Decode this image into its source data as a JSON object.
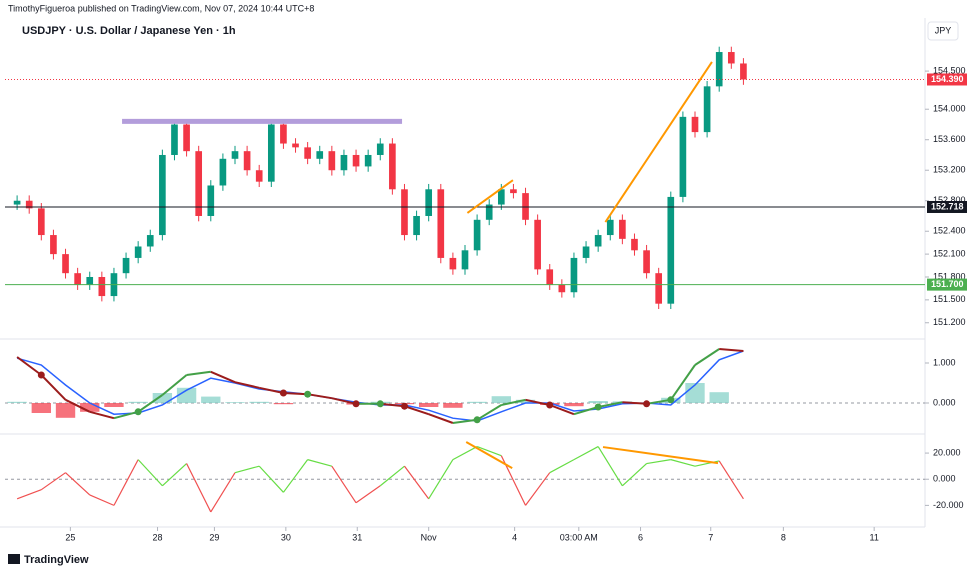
{
  "header": {
    "publisher": "TimothyFigueroa published on TradingView.com, Nov 07, 2024 10:44 UTC+8"
  },
  "currency": "JPY",
  "brand": "TradingView",
  "chart_data": [
    {
      "type": "candlestick",
      "title": "USDJPY · U.S. Dollar / Japanese Yen · 1h",
      "x": [
        0,
        1,
        2,
        3,
        4,
        5,
        6,
        7,
        8,
        9,
        10,
        11,
        12,
        13,
        14,
        15,
        16,
        17,
        18,
        19,
        20,
        21,
        22,
        23,
        24,
        25,
        26,
        27,
        28,
        29,
        30,
        31,
        32,
        33,
        34,
        35,
        36,
        37,
        38,
        39,
        40,
        41,
        42,
        43,
        44,
        45,
        46,
        47,
        48,
        49,
        50,
        51,
        52,
        53,
        54,
        55,
        56,
        57,
        58,
        59,
        60
      ],
      "open": [
        152.75,
        152.8,
        152.7,
        152.35,
        152.1,
        151.85,
        151.7,
        151.8,
        151.55,
        151.85,
        152.05,
        152.2,
        152.35,
        153.4,
        153.8,
        153.45,
        152.6,
        153.0,
        153.35,
        153.45,
        153.2,
        153.05,
        153.8,
        153.55,
        153.5,
        153.35,
        153.45,
        153.2,
        153.4,
        153.25,
        153.4,
        153.55,
        152.95,
        152.35,
        152.6,
        152.95,
        152.05,
        151.9,
        152.15,
        152.55,
        152.75,
        152.95,
        152.9,
        152.55,
        151.9,
        151.7,
        151.6,
        152.05,
        152.2,
        152.35,
        152.55,
        152.3,
        152.15,
        151.85,
        151.45,
        152.85,
        153.9,
        153.7,
        154.3,
        154.75,
        154.6
      ],
      "high": [
        152.87,
        152.87,
        152.77,
        152.42,
        152.17,
        151.92,
        151.87,
        151.87,
        151.92,
        152.12,
        152.27,
        152.42,
        153.47,
        153.87,
        153.87,
        153.52,
        153.07,
        153.42,
        153.52,
        153.52,
        153.27,
        153.87,
        153.87,
        153.62,
        153.57,
        153.52,
        153.52,
        153.47,
        153.47,
        153.47,
        153.62,
        153.62,
        153.02,
        152.67,
        153.02,
        153.02,
        152.12,
        152.22,
        152.62,
        152.82,
        153.02,
        153.02,
        152.97,
        152.62,
        151.97,
        151.77,
        152.12,
        152.27,
        152.42,
        152.62,
        152.62,
        152.37,
        152.22,
        151.92,
        152.92,
        153.97,
        153.97,
        154.37,
        154.82,
        154.82,
        154.67
      ],
      "low": [
        152.68,
        152.63,
        152.28,
        152.03,
        151.78,
        151.63,
        151.63,
        151.48,
        151.48,
        151.78,
        151.98,
        152.13,
        152.28,
        153.33,
        153.38,
        152.53,
        152.53,
        152.93,
        153.28,
        153.13,
        152.98,
        152.98,
        153.48,
        153.43,
        153.28,
        153.28,
        153.13,
        153.13,
        153.18,
        153.18,
        153.33,
        152.88,
        152.28,
        152.28,
        152.53,
        151.98,
        151.83,
        151.83,
        152.08,
        152.48,
        152.68,
        152.83,
        152.48,
        151.83,
        151.63,
        151.53,
        151.53,
        151.98,
        152.13,
        152.28,
        152.23,
        152.08,
        151.78,
        151.38,
        151.38,
        152.78,
        153.63,
        153.63,
        154.23,
        154.53,
        154.32
      ],
      "close": [
        152.8,
        152.7,
        152.35,
        152.1,
        151.85,
        151.7,
        151.8,
        151.55,
        151.85,
        152.05,
        152.2,
        152.35,
        153.4,
        153.8,
        153.45,
        152.6,
        153.0,
        153.35,
        153.45,
        153.2,
        153.05,
        153.8,
        153.55,
        153.5,
        153.35,
        153.45,
        153.2,
        153.4,
        153.25,
        153.4,
        153.55,
        152.95,
        152.35,
        152.6,
        152.95,
        152.05,
        151.9,
        152.15,
        152.55,
        152.75,
        152.95,
        152.9,
        152.55,
        151.9,
        151.7,
        151.6,
        152.05,
        152.2,
        152.35,
        152.55,
        152.3,
        152.15,
        151.85,
        151.45,
        152.85,
        153.9,
        153.7,
        154.3,
        154.75,
        154.6,
        154.39
      ],
      "up_color": "#089981",
      "down_color": "#f23645",
      "xlim": [
        -1,
        75
      ],
      "xticks": [
        {
          "value": 4.4,
          "label": "25"
        },
        {
          "value": 11.6,
          "label": "28"
        },
        {
          "value": 16.3,
          "label": "29"
        },
        {
          "value": 22.2,
          "label": "30"
        },
        {
          "value": 28.1,
          "label": "31"
        },
        {
          "value": 34,
          "label": "Nov"
        },
        {
          "value": 41.1,
          "label": "4"
        },
        {
          "value": 46.4,
          "label": "03:00 AM"
        },
        {
          "value": 51.5,
          "label": "6"
        },
        {
          "value": 57.3,
          "label": "7"
        },
        {
          "value": 63.3,
          "label": "8"
        },
        {
          "value": 70.8,
          "label": "11"
        }
      ],
      "ylim": [
        151.0,
        155.17
      ],
      "yticks": [
        {
          "value": 151.2,
          "label": "151.200"
        },
        {
          "value": 151.5,
          "label": "151.500"
        },
        {
          "value": 151.8,
          "label": "151.800"
        },
        {
          "value": 152.1,
          "label": "152.100"
        },
        {
          "value": 152.4,
          "label": "152.400"
        },
        {
          "value": 152.8,
          "label": "152.800"
        },
        {
          "value": 153.2,
          "label": "153.200"
        },
        {
          "value": 153.6,
          "label": "153.600"
        },
        {
          "value": 154.0,
          "label": "154.000"
        },
        {
          "value": 154.5,
          "label": "154.500"
        }
      ],
      "grid": false,
      "hlines": [
        {
          "value": 154.39,
          "label": "154.390",
          "color": "#f23645",
          "dashed": true
        },
        {
          "value": 152.718,
          "label": "152.718",
          "color": "#131722",
          "dashed": false
        },
        {
          "value": 151.7,
          "label": "151.700",
          "color": "#4caf50",
          "dashed": false
        }
      ],
      "drawings": [
        {
          "color": "#b39ddb",
          "width": 5,
          "x": [
            8.67,
            31.8
          ],
          "y": [
            153.84,
            153.84
          ]
        },
        {
          "color": "#ff9800",
          "width": 2,
          "x": [
            37.2,
            40.96
          ],
          "y": [
            152.64,
            153.07
          ]
        },
        {
          "color": "#ff9800",
          "width": 2,
          "x": [
            48.6,
            57.4
          ],
          "y": [
            152.52,
            154.62
          ]
        }
      ]
    },
    {
      "type": "line",
      "x": [
        0,
        2,
        4,
        6,
        8,
        10,
        12,
        14,
        16,
        18,
        20,
        22,
        24,
        26,
        28,
        30,
        32,
        34,
        36,
        38,
        40,
        42,
        44,
        46,
        48,
        50,
        52,
        54,
        56,
        58,
        60
      ],
      "series": [
        {
          "kind": "histogram",
          "colors": [
            "#7fcfc4",
            "#f23645"
          ],
          "values": [
            0.03,
            -0.25,
            -0.37,
            -0.22,
            -0.1,
            0.03,
            0.25,
            0.38,
            0.16,
            0.02,
            0.03,
            -0.03,
            0,
            0,
            -0.04,
            0.03,
            -0.03,
            -0.1,
            -0.12,
            0.03,
            0.17,
            0.08,
            -0.05,
            -0.08,
            0.05,
            0.04,
            -0.02,
            0.13,
            0.5,
            0.27,
            0
          ]
        },
        {
          "kind": "line",
          "color": "#2962ff",
          "values": [
            1.12,
            0.95,
            0.45,
            0,
            -0.28,
            -0.25,
            -0.05,
            0.32,
            0.62,
            0.5,
            0.35,
            0.28,
            0.22,
            0.12,
            0.02,
            -0.05,
            -0.05,
            -0.18,
            -0.38,
            -0.45,
            -0.22,
            0,
            0,
            -0.2,
            -0.15,
            -0.02,
            0,
            -0.05,
            0.45,
            1.08,
            1.3
          ]
        },
        {
          "kind": "direction",
          "colors": [
            "#43a047",
            "#9b1c1c"
          ],
          "cross_dots": true,
          "values": [
            1.15,
            0.7,
            0.08,
            -0.22,
            -0.38,
            -0.22,
            0.2,
            0.7,
            0.78,
            0.52,
            0.38,
            0.25,
            0.22,
            0.12,
            -0.02,
            -0.02,
            -0.08,
            -0.28,
            -0.5,
            -0.42,
            -0.05,
            0.08,
            -0.05,
            -0.28,
            -0.1,
            0.02,
            -0.02,
            0.08,
            0.95,
            1.35,
            1.3
          ]
        }
      ],
      "xlim": [
        -1,
        75
      ],
      "ylim": [
        -0.675,
        1.575
      ],
      "yticks": [
        {
          "value": 0,
          "label": "0.000"
        },
        {
          "value": 1,
          "label": "1.000"
        }
      ]
    },
    {
      "type": "line",
      "x": [
        0,
        2,
        4,
        6,
        8,
        10,
        12,
        14,
        16,
        18,
        20,
        22,
        24,
        26,
        28,
        30,
        32,
        34,
        36,
        38,
        40,
        42,
        44,
        46,
        48,
        50,
        52,
        54,
        56,
        58,
        60
      ],
      "series": [
        {
          "kind": "sign",
          "colors": [
            "#66dd44",
            "#f05050"
          ],
          "values": [
            -15,
            -8,
            5,
            -12,
            -20,
            15,
            -5,
            12,
            -25,
            5,
            10,
            -10,
            15,
            10,
            -18,
            -5,
            10,
            -15,
            15,
            25,
            18,
            -20,
            5,
            15,
            25,
            -5,
            12,
            15,
            10,
            14,
            -15
          ]
        }
      ],
      "xlim": [
        -1,
        75
      ],
      "ylim": [
        -35,
        30
      ],
      "yticks": [
        {
          "value": 20,
          "label": "20.000"
        },
        {
          "value": 0,
          "label": "0.000"
        },
        {
          "value": -20,
          "label": "-20.000"
        }
      ],
      "drawings": [
        {
          "color": "#ff9800",
          "width": 2,
          "x": [
            37.1,
            40.9
          ],
          "y": [
            28.5,
            8.5
          ]
        },
        {
          "color": "#ff9800",
          "width": 2,
          "x": [
            48.4,
            57.9
          ],
          "y": [
            24.6,
            12.3
          ]
        }
      ]
    }
  ]
}
